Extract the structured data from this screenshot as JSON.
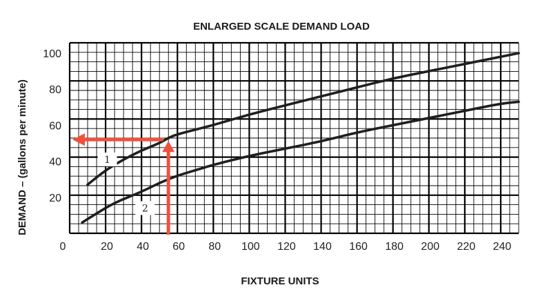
{
  "chart_data": {
    "type": "line",
    "title": "ENLARGED SCALE DEMAND LOAD",
    "xlabel": "FIXTURE UNITS",
    "ylabel": "DEMAND – (gallons per minute)",
    "xlim": [
      0,
      250
    ],
    "ylim": [
      0,
      100
    ],
    "x_ticks": [
      "0",
      "20",
      "40",
      "60",
      "80",
      "100",
      "120",
      "140",
      "160",
      "180",
      "200",
      "220",
      "240"
    ],
    "y_ticks": [
      "20",
      "40",
      "60",
      "80",
      "100"
    ],
    "grid": true,
    "series": [
      {
        "name": "1",
        "x": [
          10,
          20,
          30,
          40,
          50,
          55,
          60,
          80,
          100,
          120,
          140,
          160,
          180,
          200,
          220,
          240,
          250
        ],
        "y": [
          27,
          35,
          41,
          46,
          50,
          53,
          55,
          60,
          66,
          71,
          76,
          81,
          86,
          90,
          94,
          98,
          100
        ]
      },
      {
        "name": "2",
        "x": [
          7,
          15,
          25,
          40,
          50,
          60,
          70,
          80,
          100,
          120,
          140,
          160,
          180,
          200,
          220,
          240,
          250
        ],
        "y": [
          6,
          11,
          17,
          23,
          28,
          32,
          35,
          38,
          43,
          47,
          51,
          56,
          60,
          64,
          68,
          72,
          73
        ]
      }
    ],
    "annotations": [
      {
        "type": "arrow",
        "label": "",
        "color": "#f0513d",
        "x": 55,
        "from_y": 0,
        "to_y": 52
      },
      {
        "type": "arrow",
        "label": "",
        "color": "#f0513d",
        "y": 52,
        "from_x": 52,
        "to_x": 0
      }
    ],
    "colors": {
      "curve": "#1f1f1f",
      "grid": "#000000",
      "arrow": "#f0513d"
    }
  }
}
